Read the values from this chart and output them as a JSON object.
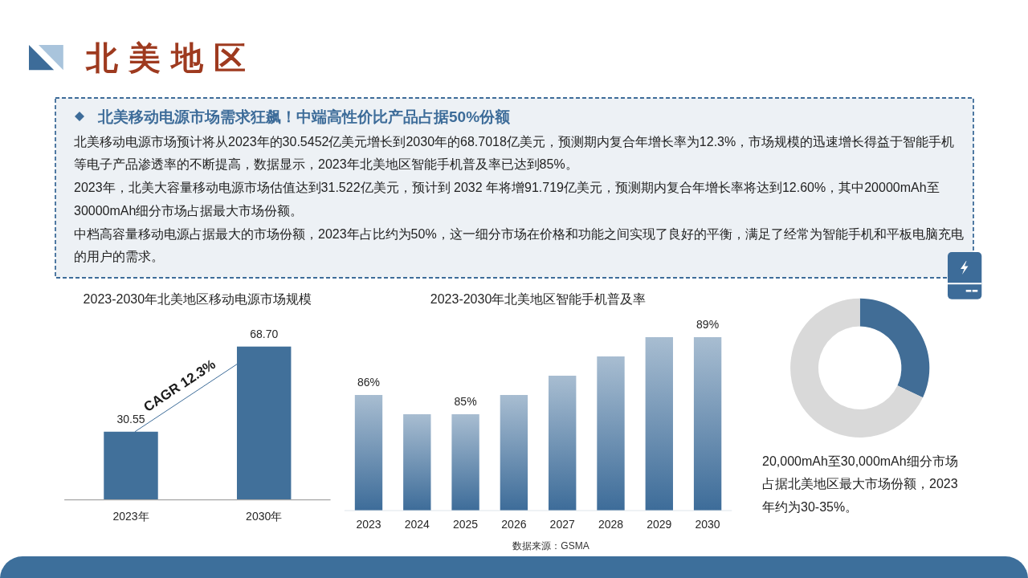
{
  "chart_data": [
    {
      "type": "other",
      "title": "北美地区",
      "subtitle": "北美移动电源市场需求狂飙！中端高性价比产品占据50%份额",
      "annotations": [
        "北美移动电源市场预计将从2023年的30.5452亿美元增长到2030年的68.7018亿美元，预测期内复合年增长率为12.3%，市场规模的迅速增长得益于智能手机等电子产品渗透率的不断提高，数据显示，2023年北美地区智能手机普及率已达到85%。",
        "2023年，北美大容量移动电源市场估值达到31.522亿美元，预计到 2032 年将增91.719亿美元，预测期内复合年增长率将达到12.60%，其中20000mAh至30000mAh细分市场占据最大市场份额。",
        "中档高容量移动电源占据最大的市场份额，2023年占比约为50%，这一细分市场在价格和功能之间实现了良好的平衡，满足了经常为智能手机和平板电脑充电的用户的需求。"
      ]
    },
    {
      "type": "bar",
      "title": "2023-2030年北美地区移动电源市场规模",
      "categories": [
        "2023年",
        "2030年"
      ],
      "values": [
        30.55,
        68.7
      ],
      "value_labels": [
        "30.55",
        "68.70"
      ],
      "color": "#41709a",
      "ylim": [
        0,
        68.7
      ],
      "annotations": [
        "CAGR 12.3%"
      ]
    },
    {
      "type": "bar",
      "title": "2023-2030年北美地区智能手机普及率",
      "categories": [
        "2023",
        "2024",
        "2025",
        "2026",
        "2027",
        "2028",
        "2029",
        "2030"
      ],
      "values": [
        86,
        85,
        85,
        86,
        87,
        88,
        89,
        89
      ],
      "value_labels": [
        "86%",
        null,
        "85%",
        null,
        null,
        null,
        null,
        "89%"
      ],
      "color": "#3d6c99",
      "ylim": [
        80,
        89
      ],
      "annotations": [
        "数据来源：GSMA"
      ]
    },
    {
      "type": "donut",
      "categories": [
        null,
        null
      ],
      "values": [
        32,
        68
      ],
      "colors": [
        "#416d96",
        "#d9d9d9"
      ],
      "annotations": [
        "20,000mAh至30,000mAh细分市场占据北美地区最大市场份额，2023年约为30-35%。"
      ]
    }
  ]
}
